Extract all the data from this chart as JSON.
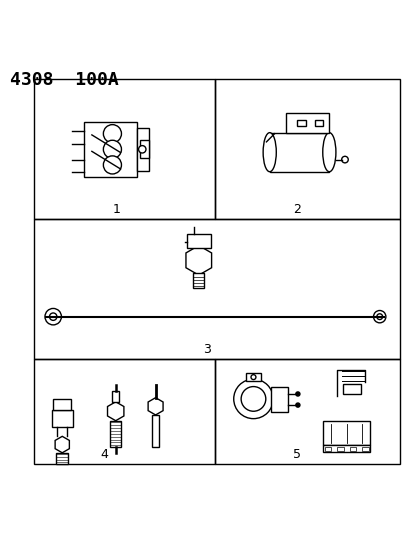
{
  "title": "4308  100A",
  "bg_color": "#ffffff",
  "border_color": "#000000",
  "line_color": "#000000",
  "title_fontsize": 13,
  "label_fontsize": 9,
  "labels": [
    "1",
    "2",
    "3",
    "4",
    "5"
  ]
}
